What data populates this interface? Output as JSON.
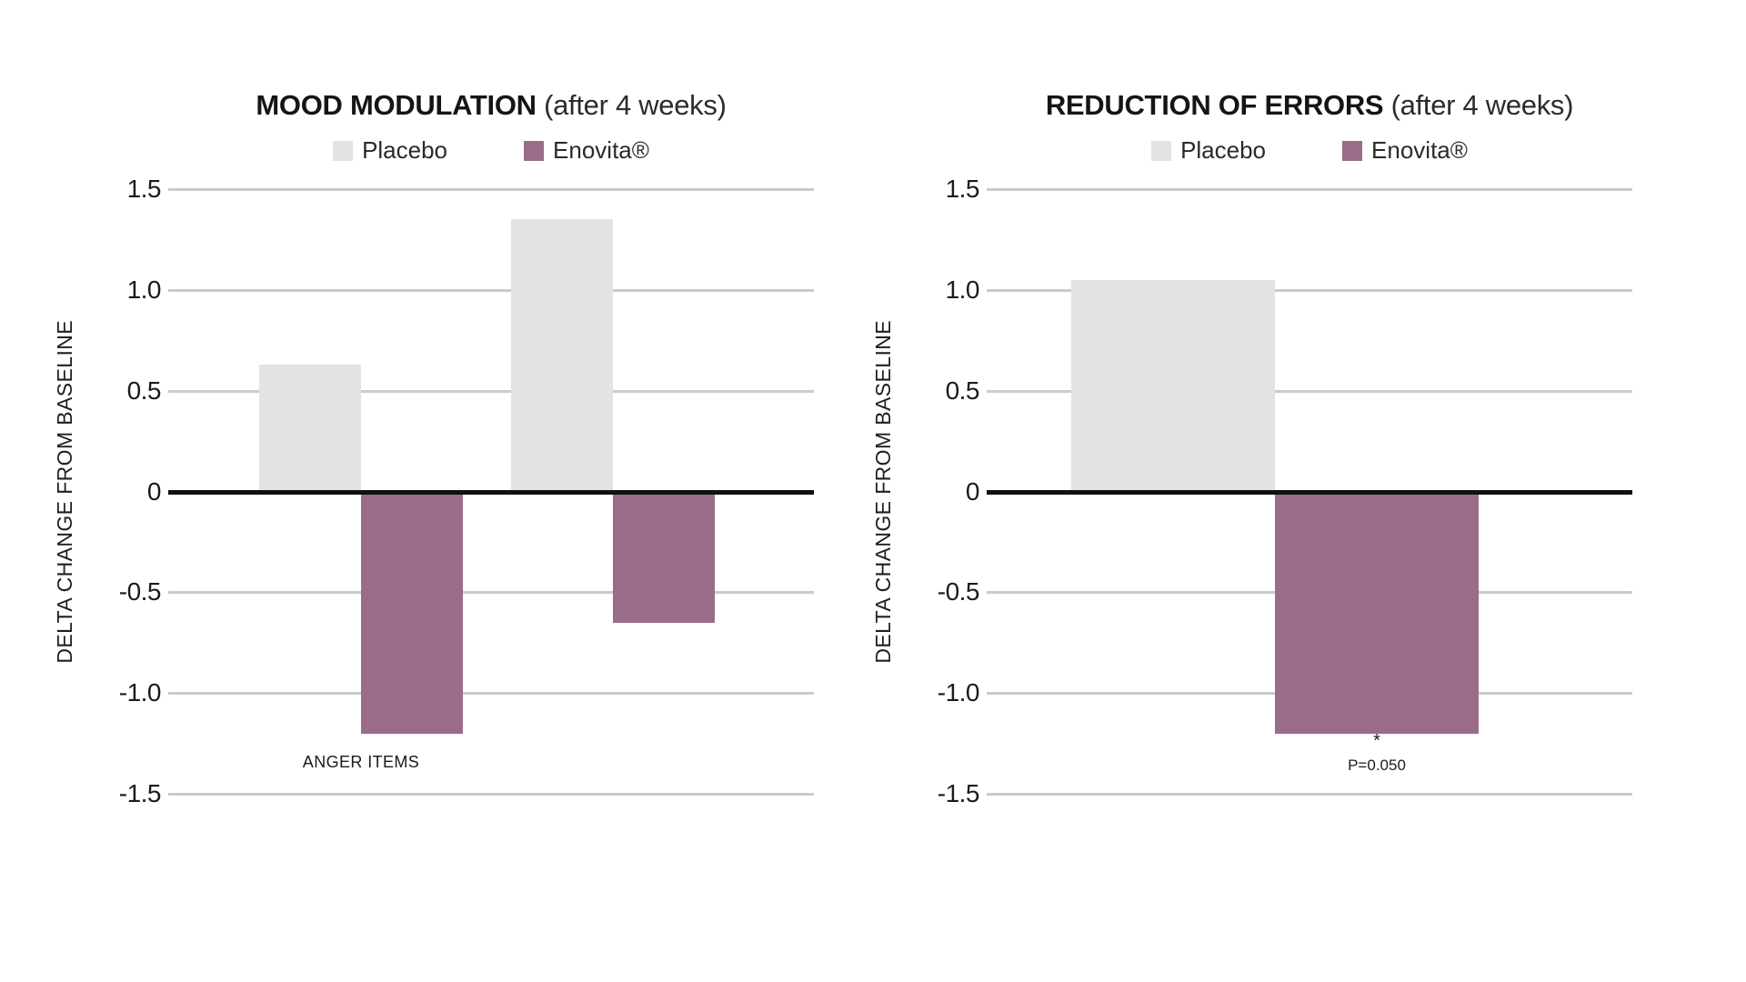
{
  "page": {
    "background": "#ffffff"
  },
  "colors": {
    "placebo": "#e4e3e3",
    "enovita": "#9a6c89",
    "grid": "#cbcbcb",
    "zero_line": "#111111",
    "text": "#1b1b1b"
  },
  "chart_data": [
    {
      "type": "bar",
      "title": "MOOD MODULATION",
      "subtitle": "(after 4 weeks)",
      "ylabel": "DELTA CHANGE FROM BASELINE",
      "ylim": [
        -1.5,
        1.5
      ],
      "yticks": [
        "1.5",
        "1.0",
        "0.5",
        "0",
        "-0.5",
        "-1.0",
        "-1.5"
      ],
      "grid": true,
      "legend_position": "top",
      "legend": [
        {
          "name": "Placebo",
          "color": "#e4e3e3"
        },
        {
          "name": "Enovita®",
          "color": "#9a6c89"
        }
      ],
      "categories": [
        "ANGER ITEMS",
        ""
      ],
      "series": [
        {
          "name": "Placebo",
          "values": [
            0.63,
            1.35
          ]
        },
        {
          "name": "Enovita®",
          "values": [
            -1.2,
            -0.65
          ]
        }
      ]
    },
    {
      "type": "bar",
      "title": "REDUCTION OF ERRORS",
      "subtitle": "(after 4 weeks)",
      "ylabel": "DELTA CHANGE FROM BASELINE",
      "ylim": [
        -1.5,
        1.5
      ],
      "yticks": [
        "1.5",
        "1.0",
        "0.5",
        "0",
        "-0.5",
        "-1.0",
        "-1.5"
      ],
      "grid": true,
      "legend_position": "top",
      "legend": [
        {
          "name": "Placebo",
          "color": "#e4e3e3"
        },
        {
          "name": "Enovita®",
          "color": "#9a6c89"
        }
      ],
      "categories": [
        ""
      ],
      "series": [
        {
          "name": "Placebo",
          "values": [
            1.05
          ]
        },
        {
          "name": "Enovita®",
          "values": [
            -1.2
          ]
        }
      ],
      "significance": {
        "symbol": "*",
        "p_label": "P=0.050"
      }
    }
  ]
}
